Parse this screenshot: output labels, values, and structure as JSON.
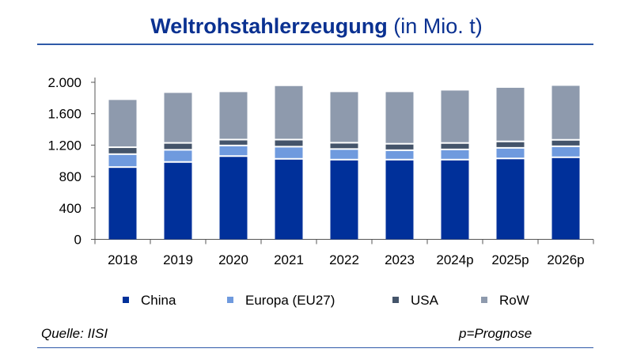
{
  "title": {
    "bold": "Weltrohstahlerzeugung",
    "normal": "(in Mio. t)"
  },
  "footer": {
    "source": "Quelle: IISI",
    "note": "p=Prognose"
  },
  "chart_data": {
    "type": "bar",
    "stacked": true,
    "title": "Weltrohstahlerzeugung (in Mio. t)",
    "categories": [
      "2018",
      "2019",
      "2020",
      "2021",
      "2022",
      "2023",
      "2024p",
      "2025p",
      "2026p"
    ],
    "ylim": [
      0,
      2000
    ],
    "yticks": [
      0,
      400,
      800,
      1200,
      1600,
      2000
    ],
    "ytick_labels": [
      "0",
      "400",
      "800",
      "1.200",
      "1.600",
      "2.000"
    ],
    "grid": false,
    "legend_position": "bottom",
    "series": [
      {
        "name": "China",
        "color": "#00309a",
        "values": [
          910,
          975,
          1050,
          1015,
          1005,
          1005,
          1005,
          1020,
          1035
        ]
      },
      {
        "name": "Europa (EU27)",
        "color": "#6f9ade",
        "values": [
          165,
          155,
          135,
          155,
          135,
          120,
          130,
          135,
          140
        ]
      },
      {
        "name": "USA",
        "color": "#44546a",
        "values": [
          88,
          88,
          75,
          90,
          80,
          82,
          82,
          82,
          82
        ]
      },
      {
        "name": "RoW",
        "color": "#8e9aad",
        "values": [
          612,
          647,
          615,
          692,
          655,
          668,
          678,
          693,
          698
        ]
      }
    ]
  }
}
